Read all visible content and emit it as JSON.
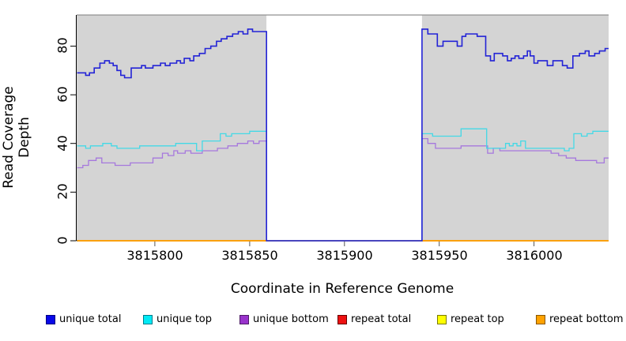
{
  "figure": {
    "x_axis_title": "Coordinate in Reference Genome",
    "y_axis_title": "Read Coverage Depth"
  },
  "chart_data": {
    "type": "line",
    "subtype": "step-post-coverage-plot",
    "title": "",
    "xlabel": "Coordinate in Reference Genome",
    "ylabel": "Read Coverage Depth",
    "xlim": [
      3815758.75,
      3816039.35
    ],
    "ylim": [
      0,
      92.8
    ],
    "grid": false,
    "legend_position": "bottom",
    "x_ticks": [
      {
        "value": 3815800,
        "label": "3815800"
      },
      {
        "value": 3815850,
        "label": "3815850"
      },
      {
        "value": 3815900,
        "label": "3815900"
      },
      {
        "value": 3815950,
        "label": "3815950"
      },
      {
        "value": 3816000,
        "label": "3816000"
      }
    ],
    "y_ticks": [
      {
        "value": 0,
        "label": "0"
      },
      {
        "value": 20,
        "label": "20"
      },
      {
        "value": 40,
        "label": "40"
      },
      {
        "value": 60,
        "label": "60"
      },
      {
        "value": 80,
        "label": "80"
      }
    ],
    "background_regions": [
      {
        "name": "covered-left",
        "x0": 3815758.75,
        "x1": 3815858.9,
        "fill": "#d4d4d4"
      },
      {
        "name": "uncovered-gap",
        "x0": 3815858.9,
        "x1": 3815940.9,
        "fill": "#ffffff"
      },
      {
        "name": "covered-right",
        "x0": 3815940.9,
        "x1": 3816039.35,
        "fill": "#d4d4d4"
      }
    ],
    "plot_border_top_color": "#909090",
    "axis_color": "#000000",
    "series": [
      {
        "name": "repeat total",
        "color": "#dd0000",
        "width": 1.4,
        "points": [
          [
            3815759,
            0
          ]
        ]
      },
      {
        "name": "repeat top",
        "color": "#f5e600",
        "width": 1.4,
        "points": [
          [
            3815759,
            0
          ]
        ]
      },
      {
        "name": "repeat bottom",
        "color": "#ff9d00",
        "width": 1.6,
        "points": [
          [
            3815759,
            0
          ]
        ]
      },
      {
        "name": "unique bottom",
        "color": "#a678dd",
        "width": 1.3,
        "points": [
          [
            3815759,
            30
          ],
          [
            3815762,
            31
          ],
          [
            3815765,
            33
          ],
          [
            3815769,
            34
          ],
          [
            3815772,
            32
          ],
          [
            3815779,
            31
          ],
          [
            3815787,
            32
          ],
          [
            3815799,
            34
          ],
          [
            3815804,
            36
          ],
          [
            3815807,
            35
          ],
          [
            3815810,
            37
          ],
          [
            3815812,
            36
          ],
          [
            3815816,
            37
          ],
          [
            3815819,
            36
          ],
          [
            3815825,
            37
          ],
          [
            3815833,
            38
          ],
          [
            3815838.5,
            39
          ],
          [
            3815843.5,
            40
          ],
          [
            3815849,
            41
          ],
          [
            3815852,
            40
          ],
          [
            3815855,
            41
          ],
          [
            3815858.9,
            0
          ],
          [
            3815940.9,
            42
          ],
          [
            3815944,
            40
          ],
          [
            3815948,
            38
          ],
          [
            3815961.5,
            39
          ],
          [
            3815975.5,
            36
          ],
          [
            3815978.5,
            38
          ],
          [
            3815982,
            37
          ],
          [
            3816004,
            37
          ],
          [
            3816009,
            36
          ],
          [
            3816013,
            35
          ],
          [
            3816017,
            34
          ],
          [
            3816022,
            33
          ],
          [
            3816033,
            32
          ],
          [
            3816037,
            34
          ]
        ]
      },
      {
        "name": "unique top",
        "color": "#43d9e6",
        "width": 1.3,
        "points": [
          [
            3815759,
            39
          ],
          [
            3815763.5,
            38
          ],
          [
            3815766,
            39
          ],
          [
            3815772.5,
            40
          ],
          [
            3815777,
            39
          ],
          [
            3815780,
            38
          ],
          [
            3815792,
            39
          ],
          [
            3815811,
            40
          ],
          [
            3815822,
            37
          ],
          [
            3815825,
            41
          ],
          [
            3815834.5,
            44
          ],
          [
            3815837.5,
            43
          ],
          [
            3815840.5,
            44
          ],
          [
            3815850,
            45
          ],
          [
            3815858.9,
            0
          ],
          [
            3815940.9,
            44
          ],
          [
            3815946.5,
            43
          ],
          [
            3815961.5,
            46
          ],
          [
            3815975,
            38
          ],
          [
            3815985,
            40
          ],
          [
            3815987,
            39
          ],
          [
            3815989,
            40
          ],
          [
            3815991,
            39
          ],
          [
            3815993,
            41
          ],
          [
            3815995.5,
            38
          ],
          [
            3816016,
            37
          ],
          [
            3816018.5,
            38
          ],
          [
            3816021,
            44
          ],
          [
            3816025,
            43
          ],
          [
            3816028,
            44
          ],
          [
            3816031,
            45
          ]
        ]
      },
      {
        "name": "unique total",
        "color": "#2323d6",
        "width": 1.6,
        "points": [
          [
            3815759,
            69
          ],
          [
            3815763.5,
            68
          ],
          [
            3815765.5,
            69
          ],
          [
            3815768,
            71
          ],
          [
            3815771,
            73
          ],
          [
            3815773.5,
            74
          ],
          [
            3815776,
            73
          ],
          [
            3815778,
            72
          ],
          [
            3815780,
            70
          ],
          [
            3815782,
            68
          ],
          [
            3815784,
            67
          ],
          [
            3815787.5,
            71
          ],
          [
            3815793,
            72
          ],
          [
            3815795,
            71
          ],
          [
            3815799,
            72
          ],
          [
            3815803,
            73
          ],
          [
            3815805.5,
            72
          ],
          [
            3815808,
            73
          ],
          [
            3815811.5,
            74
          ],
          [
            3815813.5,
            73
          ],
          [
            3815815.5,
            75
          ],
          [
            3815818.5,
            74
          ],
          [
            3815820.5,
            76
          ],
          [
            3815823.5,
            77
          ],
          [
            3815826.5,
            79
          ],
          [
            3815829.5,
            80
          ],
          [
            3815832.5,
            82
          ],
          [
            3815835,
            83
          ],
          [
            3815838,
            84
          ],
          [
            3815841,
            85
          ],
          [
            3815844,
            86
          ],
          [
            3815846.5,
            85
          ],
          [
            3815849,
            87
          ],
          [
            3815851.5,
            86
          ],
          [
            3815858.9,
            0
          ],
          [
            3815940.9,
            87
          ],
          [
            3815944,
            85
          ],
          [
            3815949,
            80
          ],
          [
            3815952,
            82
          ],
          [
            3815959.5,
            80
          ],
          [
            3815962,
            84
          ],
          [
            3815964,
            85
          ],
          [
            3815970,
            84
          ],
          [
            3815974.5,
            76
          ],
          [
            3815977,
            74
          ],
          [
            3815979,
            77
          ],
          [
            3815983.5,
            76
          ],
          [
            3815986,
            74
          ],
          [
            3815988,
            75
          ],
          [
            3815990,
            76
          ],
          [
            3815992,
            75
          ],
          [
            3815994.5,
            76
          ],
          [
            3815996.5,
            78
          ],
          [
            3815998,
            76
          ],
          [
            3816000,
            73
          ],
          [
            3816002,
            74
          ],
          [
            3816007,
            72
          ],
          [
            3816010,
            74
          ],
          [
            3816015,
            72
          ],
          [
            3816017.5,
            71
          ],
          [
            3816020.5,
            76
          ],
          [
            3816024,
            77
          ],
          [
            3816027,
            78
          ],
          [
            3816029,
            76
          ],
          [
            3816032,
            77
          ],
          [
            3816034.5,
            78
          ],
          [
            3816037.5,
            79
          ]
        ]
      }
    ]
  },
  "legend": {
    "items": [
      {
        "label": "unique total",
        "fill": "#0808e8",
        "border": "#000080"
      },
      {
        "label": "unique top",
        "fill": "#00eaf5",
        "border": "#007b8a"
      },
      {
        "label": "unique bottom",
        "fill": "#9933cc",
        "border": "#4d1a66"
      },
      {
        "label": "repeat total",
        "fill": "#ee1111",
        "border": "#660000"
      },
      {
        "label": "repeat top",
        "fill": "#ffff00",
        "border": "#7a7a00"
      },
      {
        "label": "repeat bottom",
        "fill": "#ffa200",
        "border": "#8a5600"
      }
    ]
  }
}
